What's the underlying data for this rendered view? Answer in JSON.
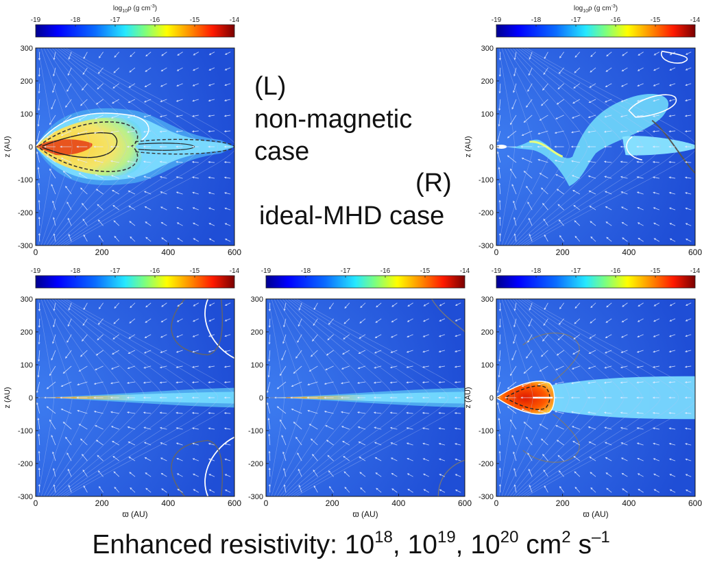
{
  "chart_data": {
    "type": "heatmap",
    "colorbar": {
      "label": "log10ρ (g cm⁻³)",
      "label_parts": {
        "prefix": "log",
        "sub": "10",
        "mid": "ρ (g cm",
        "sup": "-3",
        "suffix": ")"
      },
      "ticks": [
        "-19",
        "-18",
        "-17",
        "-16",
        "-15",
        "-14"
      ],
      "range": [
        -19,
        -14
      ],
      "colormap": [
        "#00008f",
        "#0000ff",
        "#0080ff",
        "#00ffff",
        "#80ff80",
        "#ffff00",
        "#ff8000",
        "#ff0000",
        "#800000"
      ]
    },
    "x_ticks": [
      "0",
      "200",
      "400",
      "600"
    ],
    "y_ticks": [
      "300",
      "200",
      "100",
      "0",
      "-100",
      "-200",
      "-300"
    ],
    "xlim": [
      0,
      600
    ],
    "ylim": [
      -300,
      300
    ],
    "xlabel": "ϖ (AU)",
    "ylabel": "z (AU)",
    "panels": [
      {
        "id": "top-left",
        "label": "non-magnetic case",
        "show_label": true,
        "ylabel_shown": true,
        "xlabel_shown": false,
        "colorbar_label_shown": true
      },
      {
        "id": "top-right",
        "label": "ideal-MHD case",
        "show_label": true,
        "ylabel_shown": true,
        "xlabel_shown": false,
        "colorbar_label_shown": true
      },
      {
        "id": "bottom-left",
        "label": "resistivity 1e18",
        "show_label": false,
        "ylabel_shown": true,
        "xlabel_shown": true,
        "colorbar_label_shown": false
      },
      {
        "id": "bottom-middle",
        "label": "resistivity 1e19",
        "show_label": false,
        "ylabel_shown": false,
        "xlabel_shown": true,
        "colorbar_label_shown": false
      },
      {
        "id": "bottom-right",
        "label": "resistivity 1e20",
        "show_label": false,
        "ylabel_shown": true,
        "xlabel_shown": true,
        "colorbar_label_shown": false
      }
    ]
  },
  "annotations": {
    "left_tag": "(L)",
    "left_line1": "non-magnetic",
    "left_line2": "case",
    "right_tag": "(R)",
    "right_line1": "ideal-MHD case"
  },
  "caption": {
    "prefix": "Enhanced resistivity: 10",
    "exp1": "18",
    "sep1": ", 10",
    "exp2": "19",
    "sep2": ", 10",
    "exp3": "20",
    "unit": " cm",
    "unit_exp": "2",
    "unit_tail": " s",
    "unit_tail_exp": "–1"
  }
}
